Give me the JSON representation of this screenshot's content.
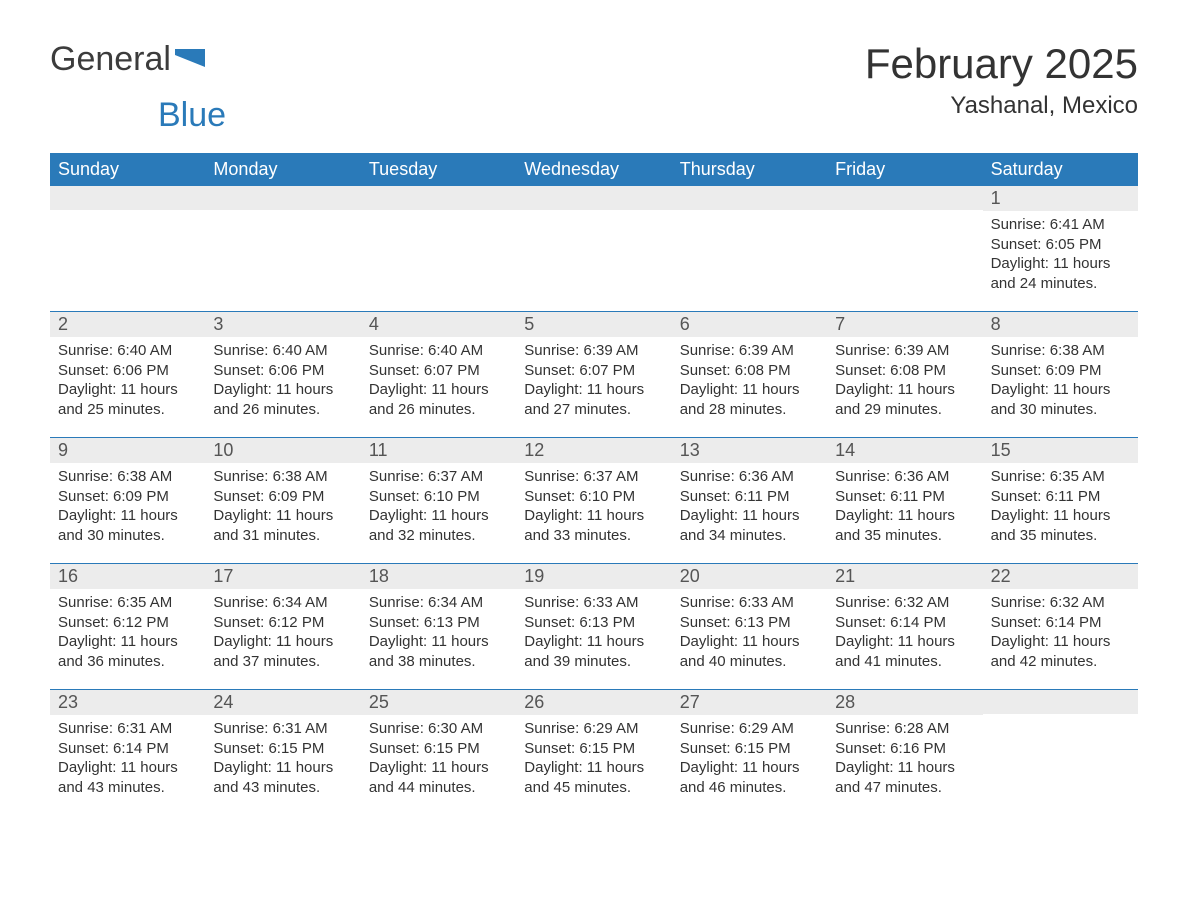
{
  "brand": {
    "part1": "General",
    "part2": "Blue"
  },
  "colors": {
    "header_bg": "#2a7ab9",
    "header_text": "#ffffff",
    "daynum_bg": "#ececec",
    "text": "#333333",
    "page_bg": "#ffffff",
    "divider": "#2a7ab9"
  },
  "title": "February 2025",
  "location": "Yashanal, Mexico",
  "weekday_headers": [
    "Sunday",
    "Monday",
    "Tuesday",
    "Wednesday",
    "Thursday",
    "Friday",
    "Saturday"
  ],
  "weeks": [
    [
      {
        "empty": true
      },
      {
        "empty": true
      },
      {
        "empty": true
      },
      {
        "empty": true
      },
      {
        "empty": true
      },
      {
        "empty": true
      },
      {
        "day": "1",
        "sunrise": "Sunrise: 6:41 AM",
        "sunset": "Sunset: 6:05 PM",
        "dl1": "Daylight: 11 hours",
        "dl2": "and 24 minutes."
      }
    ],
    [
      {
        "day": "2",
        "sunrise": "Sunrise: 6:40 AM",
        "sunset": "Sunset: 6:06 PM",
        "dl1": "Daylight: 11 hours",
        "dl2": "and 25 minutes."
      },
      {
        "day": "3",
        "sunrise": "Sunrise: 6:40 AM",
        "sunset": "Sunset: 6:06 PM",
        "dl1": "Daylight: 11 hours",
        "dl2": "and 26 minutes."
      },
      {
        "day": "4",
        "sunrise": "Sunrise: 6:40 AM",
        "sunset": "Sunset: 6:07 PM",
        "dl1": "Daylight: 11 hours",
        "dl2": "and 26 minutes."
      },
      {
        "day": "5",
        "sunrise": "Sunrise: 6:39 AM",
        "sunset": "Sunset: 6:07 PM",
        "dl1": "Daylight: 11 hours",
        "dl2": "and 27 minutes."
      },
      {
        "day": "6",
        "sunrise": "Sunrise: 6:39 AM",
        "sunset": "Sunset: 6:08 PM",
        "dl1": "Daylight: 11 hours",
        "dl2": "and 28 minutes."
      },
      {
        "day": "7",
        "sunrise": "Sunrise: 6:39 AM",
        "sunset": "Sunset: 6:08 PM",
        "dl1": "Daylight: 11 hours",
        "dl2": "and 29 minutes."
      },
      {
        "day": "8",
        "sunrise": "Sunrise: 6:38 AM",
        "sunset": "Sunset: 6:09 PM",
        "dl1": "Daylight: 11 hours",
        "dl2": "and 30 minutes."
      }
    ],
    [
      {
        "day": "9",
        "sunrise": "Sunrise: 6:38 AM",
        "sunset": "Sunset: 6:09 PM",
        "dl1": "Daylight: 11 hours",
        "dl2": "and 30 minutes."
      },
      {
        "day": "10",
        "sunrise": "Sunrise: 6:38 AM",
        "sunset": "Sunset: 6:09 PM",
        "dl1": "Daylight: 11 hours",
        "dl2": "and 31 minutes."
      },
      {
        "day": "11",
        "sunrise": "Sunrise: 6:37 AM",
        "sunset": "Sunset: 6:10 PM",
        "dl1": "Daylight: 11 hours",
        "dl2": "and 32 minutes."
      },
      {
        "day": "12",
        "sunrise": "Sunrise: 6:37 AM",
        "sunset": "Sunset: 6:10 PM",
        "dl1": "Daylight: 11 hours",
        "dl2": "and 33 minutes."
      },
      {
        "day": "13",
        "sunrise": "Sunrise: 6:36 AM",
        "sunset": "Sunset: 6:11 PM",
        "dl1": "Daylight: 11 hours",
        "dl2": "and 34 minutes."
      },
      {
        "day": "14",
        "sunrise": "Sunrise: 6:36 AM",
        "sunset": "Sunset: 6:11 PM",
        "dl1": "Daylight: 11 hours",
        "dl2": "and 35 minutes."
      },
      {
        "day": "15",
        "sunrise": "Sunrise: 6:35 AM",
        "sunset": "Sunset: 6:11 PM",
        "dl1": "Daylight: 11 hours",
        "dl2": "and 35 minutes."
      }
    ],
    [
      {
        "day": "16",
        "sunrise": "Sunrise: 6:35 AM",
        "sunset": "Sunset: 6:12 PM",
        "dl1": "Daylight: 11 hours",
        "dl2": "and 36 minutes."
      },
      {
        "day": "17",
        "sunrise": "Sunrise: 6:34 AM",
        "sunset": "Sunset: 6:12 PM",
        "dl1": "Daylight: 11 hours",
        "dl2": "and 37 minutes."
      },
      {
        "day": "18",
        "sunrise": "Sunrise: 6:34 AM",
        "sunset": "Sunset: 6:13 PM",
        "dl1": "Daylight: 11 hours",
        "dl2": "and 38 minutes."
      },
      {
        "day": "19",
        "sunrise": "Sunrise: 6:33 AM",
        "sunset": "Sunset: 6:13 PM",
        "dl1": "Daylight: 11 hours",
        "dl2": "and 39 minutes."
      },
      {
        "day": "20",
        "sunrise": "Sunrise: 6:33 AM",
        "sunset": "Sunset: 6:13 PM",
        "dl1": "Daylight: 11 hours",
        "dl2": "and 40 minutes."
      },
      {
        "day": "21",
        "sunrise": "Sunrise: 6:32 AM",
        "sunset": "Sunset: 6:14 PM",
        "dl1": "Daylight: 11 hours",
        "dl2": "and 41 minutes."
      },
      {
        "day": "22",
        "sunrise": "Sunrise: 6:32 AM",
        "sunset": "Sunset: 6:14 PM",
        "dl1": "Daylight: 11 hours",
        "dl2": "and 42 minutes."
      }
    ],
    [
      {
        "day": "23",
        "sunrise": "Sunrise: 6:31 AM",
        "sunset": "Sunset: 6:14 PM",
        "dl1": "Daylight: 11 hours",
        "dl2": "and 43 minutes."
      },
      {
        "day": "24",
        "sunrise": "Sunrise: 6:31 AM",
        "sunset": "Sunset: 6:15 PM",
        "dl1": "Daylight: 11 hours",
        "dl2": "and 43 minutes."
      },
      {
        "day": "25",
        "sunrise": "Sunrise: 6:30 AM",
        "sunset": "Sunset: 6:15 PM",
        "dl1": "Daylight: 11 hours",
        "dl2": "and 44 minutes."
      },
      {
        "day": "26",
        "sunrise": "Sunrise: 6:29 AM",
        "sunset": "Sunset: 6:15 PM",
        "dl1": "Daylight: 11 hours",
        "dl2": "and 45 minutes."
      },
      {
        "day": "27",
        "sunrise": "Sunrise: 6:29 AM",
        "sunset": "Sunset: 6:15 PM",
        "dl1": "Daylight: 11 hours",
        "dl2": "and 46 minutes."
      },
      {
        "day": "28",
        "sunrise": "Sunrise: 6:28 AM",
        "sunset": "Sunset: 6:16 PM",
        "dl1": "Daylight: 11 hours",
        "dl2": "and 47 minutes."
      },
      {
        "empty": true
      }
    ]
  ]
}
